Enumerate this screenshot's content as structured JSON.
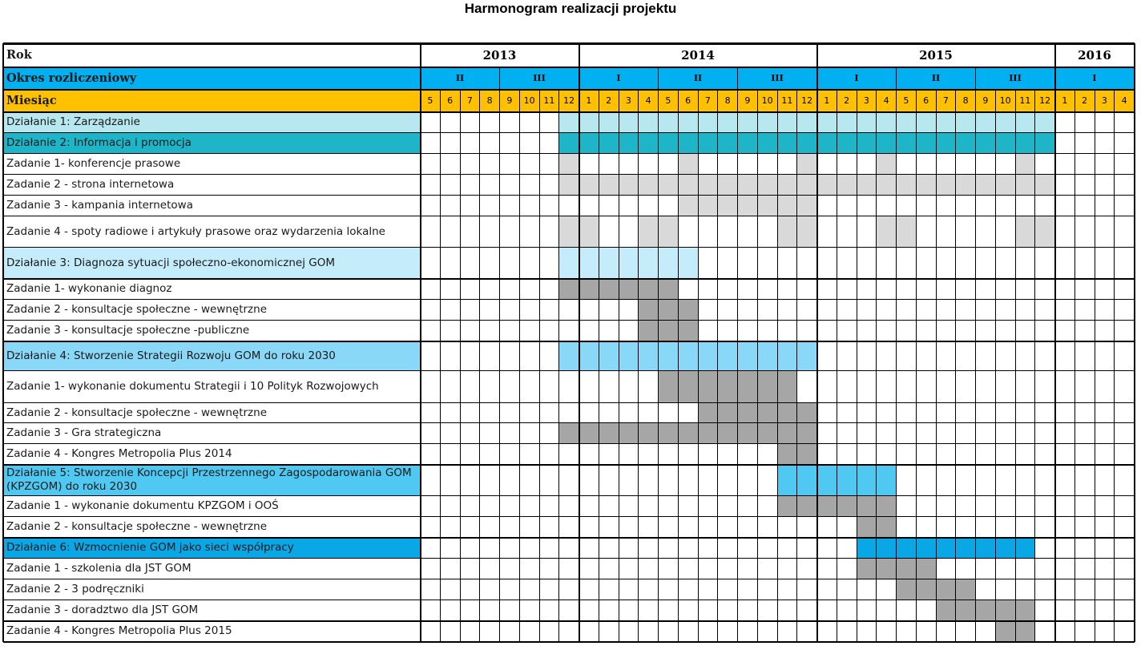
{
  "title": "Harmonogram realizacji projektu",
  "row_headers": {
    "year": "Rok",
    "period": "Okres rozliczeniowy",
    "month": "Miesiąc"
  },
  "years": [
    {
      "label": "2013",
      "months": 8
    },
    {
      "label": "2014",
      "months": 12
    },
    {
      "label": "2015",
      "months": 12
    },
    {
      "label": "2016",
      "months": 4
    }
  ],
  "periods": [
    {
      "label": "II",
      "months": 4
    },
    {
      "label": "III",
      "months": 4
    },
    {
      "label": "I",
      "months": 4
    },
    {
      "label": "II",
      "months": 4
    },
    {
      "label": "III",
      "months": 4
    },
    {
      "label": "I",
      "months": 4
    },
    {
      "label": "II",
      "months": 4
    },
    {
      "label": "III",
      "months": 4
    },
    {
      "label": "I",
      "months": 4
    }
  ],
  "months": [
    "5",
    "6",
    "7",
    "8",
    "9",
    "10",
    "11",
    "12",
    "1",
    "2",
    "3",
    "4",
    "5",
    "6",
    "7",
    "8",
    "9",
    "10",
    "11",
    "12",
    "1",
    "2",
    "3",
    "4",
    "5",
    "6",
    "7",
    "8",
    "9",
    "10",
    "11",
    "12",
    "1",
    "2",
    "3",
    "4"
  ],
  "colors": {
    "header_year_bg": "#ffffff",
    "header_period_bg": "#00b0f0",
    "header_month_bg": "#ffc000",
    "filled_task": "#d9d9d9",
    "filled_task_dark": "#a6a6a6"
  },
  "rows": [
    {
      "label": "Działanie 1: Zarządzanie",
      "type": "action",
      "bg": "#b7e8ef",
      "fill": "#b7e8ef",
      "active": [
        7,
        8,
        9,
        10,
        11,
        12,
        13,
        14,
        15,
        16,
        17,
        18,
        19,
        20,
        21,
        22,
        23,
        24,
        25,
        26,
        27,
        28,
        29,
        30,
        31
      ]
    },
    {
      "label": "Działanie 2: Informacja i promocja",
      "type": "action",
      "bg": "#1fb5c8",
      "fill": "#1fb5c8",
      "active": [
        7,
        8,
        9,
        10,
        11,
        12,
        13,
        14,
        15,
        16,
        17,
        18,
        19,
        20,
        21,
        22,
        23,
        24,
        25,
        26,
        27,
        28,
        29,
        30,
        31
      ]
    },
    {
      "label": "Zadanie 1- konferencje prasowe",
      "type": "task",
      "fill": "#d9d9d9",
      "active": [
        7,
        13,
        19,
        23,
        30
      ]
    },
    {
      "label": "Zadanie 2 - strona internetowa",
      "type": "task",
      "fill": "#d9d9d9",
      "active": [
        7,
        8,
        9,
        10,
        11,
        12,
        13,
        14,
        15,
        16,
        17,
        18,
        19,
        20,
        21,
        22,
        23,
        24,
        25,
        26,
        27,
        28,
        29,
        30,
        31
      ]
    },
    {
      "label": "Zadanie 3 - kampania internetowa",
      "type": "task",
      "fill": "#d9d9d9",
      "active": [
        13,
        14,
        15,
        16,
        17,
        18,
        19
      ]
    },
    {
      "label": "Zadanie 4 - spoty radiowe i artykuły prasowe  oraz wydarzenia lokalne",
      "type": "task",
      "fill": "#d9d9d9",
      "active": [
        7,
        8,
        11,
        12,
        18,
        19,
        23,
        24,
        30,
        31
      ]
    },
    {
      "label": "Działanie 3: Diagnoza sytuacji społeczno-ekonomicznej GOM",
      "type": "action",
      "bg": "#c4ecfa",
      "fill": "#c4ecfa",
      "active": [
        7,
        8,
        9,
        10,
        11,
        12,
        13
      ]
    },
    {
      "label": "Zadanie 1- wykonanie diagnoz",
      "type": "task",
      "fill": "#a6a6a6",
      "active": [
        7,
        8,
        9,
        10,
        11,
        12
      ]
    },
    {
      "label": "Zadanie 2 - konsultacje społeczne - wewnętrzne",
      "type": "task",
      "fill": "#a6a6a6",
      "active": [
        11,
        12,
        13
      ]
    },
    {
      "label": "Zadanie 3 - konsultacje społeczne -publiczne",
      "type": "task",
      "fill": "#a6a6a6",
      "active": [
        11,
        12,
        13
      ]
    },
    {
      "label": "Działanie 4: Stworzenie Strategii Rozwoju GOM do roku 2030",
      "type": "action",
      "bg": "#8ad8f7",
      "fill": "#8ad8f7",
      "active": [
        7,
        8,
        9,
        10,
        11,
        12,
        13,
        14,
        15,
        16,
        17,
        18,
        19
      ]
    },
    {
      "label": "Zadanie 1- wykonanie dokumentu Strategii i 10 Polityk Rozwojowych",
      "type": "task",
      "fill": "#a6a6a6",
      "active": [
        12,
        13,
        14,
        15,
        16,
        17,
        18
      ]
    },
    {
      "label": "Zadanie 2 - konsultacje społeczne - wewnętrzne",
      "type": "task",
      "fill": "#a6a6a6",
      "active": [
        14,
        15,
        16,
        17,
        18,
        19
      ]
    },
    {
      "label": "Zadanie 3 - Gra strategiczna",
      "type": "task",
      "fill": "#a6a6a6",
      "active": [
        7,
        8,
        9,
        10,
        11,
        12,
        13,
        14,
        15,
        16,
        17,
        18,
        19
      ]
    },
    {
      "label": "Zadanie 4 -  Kongres Metropolia Plus 2014",
      "type": "task",
      "fill": "#a6a6a6",
      "active": [
        18,
        19
      ]
    },
    {
      "label": "Działanie 5: Stworzenie Koncepcji Przestrzennego Zagospodarowania GOM (KPZGOM) do roku 2030",
      "type": "action",
      "bg": "#4fc8f2",
      "fill": "#4fc8f2",
      "active": [
        18,
        19,
        20,
        21,
        22,
        23
      ]
    },
    {
      "label": "Zadanie 1 - wykonanie dokumentu KPZGOM i OOŚ",
      "type": "task",
      "fill": "#a6a6a6",
      "active": [
        18,
        19,
        20,
        21,
        22,
        23
      ]
    },
    {
      "label": "Zadanie 2 - konsultacje społeczne - wewnętrzne",
      "type": "task",
      "fill": "#a6a6a6",
      "active": [
        22,
        23
      ]
    },
    {
      "label": "Działanie 6: Wzmocnienie GOM jako sieci współpracy",
      "type": "action",
      "bg": "#0aa7e6",
      "fill": "#0aa7e6",
      "active": [
        22,
        23,
        24,
        25,
        26,
        27,
        28,
        29,
        30
      ]
    },
    {
      "label": "Zadanie 1 -  szkolenia dla JST GOM",
      "type": "task",
      "fill": "#a6a6a6",
      "active": [
        22,
        23,
        24,
        25
      ]
    },
    {
      "label": "Zadanie 2 - 3 podręczniki",
      "type": "task",
      "fill": "#a6a6a6",
      "active": [
        24,
        25,
        26,
        27
      ]
    },
    {
      "label": "Zadanie 3 - doradztwo dla JST GOM",
      "type": "task",
      "fill": "#a6a6a6",
      "active": [
        26,
        27,
        28,
        29,
        30
      ]
    },
    {
      "label": "Zadanie 4 - Kongres Metropolia Plus 2015",
      "type": "task",
      "fill": "#a6a6a6",
      "active": [
        29,
        30
      ]
    }
  ]
}
